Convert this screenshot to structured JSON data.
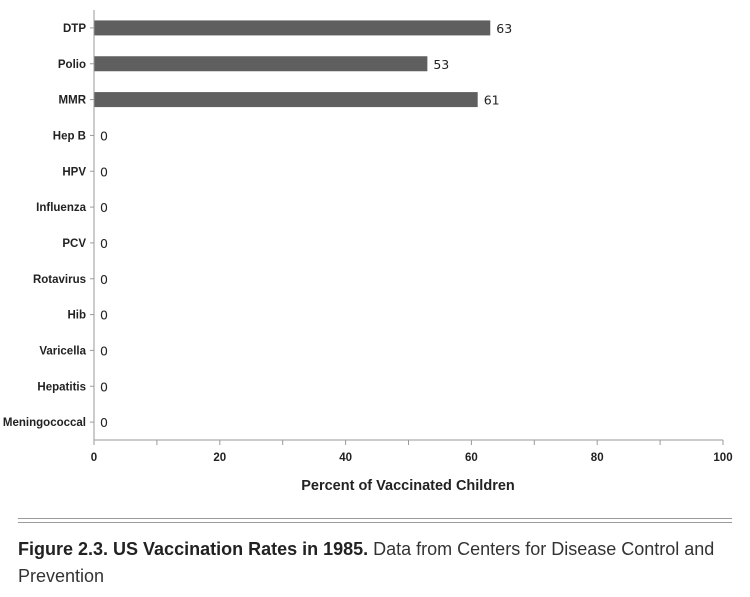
{
  "chart_data": {
    "type": "bar",
    "orientation": "horizontal",
    "categories": [
      "DTP",
      "Polio",
      "MMR",
      "Hep B",
      "HPV",
      "Influenza",
      "PCV",
      "Rotavirus",
      "Hib",
      "Varicella",
      "Hepatitis",
      "Meningococcal"
    ],
    "values": [
      63,
      53,
      61,
      0,
      0,
      0,
      0,
      0,
      0,
      0,
      0,
      0
    ],
    "value_labels": [
      "63",
      "53",
      "61",
      "0",
      "0",
      "0",
      "0",
      "0",
      "0",
      "0",
      "0",
      "0"
    ],
    "xlabel": "Percent of Vaccinated Children",
    "ylabel": "",
    "xlim": [
      0,
      100
    ],
    "x_ticks": [
      0,
      20,
      40,
      60,
      80,
      100
    ],
    "grid": false,
    "legend": "none",
    "bar_color": "#5f5f5f"
  },
  "caption": {
    "figure_label": "Figure 2.3. US Vaccination Rates in 1985.",
    "text": " Data from Centers for Disease Control and Prevention"
  }
}
